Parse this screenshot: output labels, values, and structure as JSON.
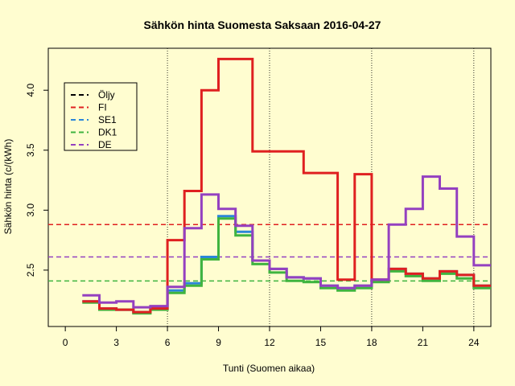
{
  "chart_data": {
    "type": "line",
    "step": true,
    "title": "Sähkön hinta Suomesta Saksaan 2016-04-27",
    "xlabel": "Tunti (Suomen aikaa)",
    "ylabel": "Sähkön hinta (c/(kWh)",
    "xlim": [
      -1,
      25
    ],
    "ylim": [
      2.03,
      4.35
    ],
    "x_ticks": [
      0,
      3,
      6,
      9,
      12,
      15,
      18,
      21,
      24
    ],
    "x_tick_labels": [
      "0",
      "3",
      "6",
      "9",
      "12",
      "15",
      "18",
      "21",
      "24"
    ],
    "y_ticks": [
      2.5,
      3.0,
      3.5,
      4.0
    ],
    "y_tick_labels": [
      "2.5",
      "3.0",
      "3.5",
      "4.0"
    ],
    "vlines": [
      6,
      12,
      18,
      24
    ],
    "legend_position": "top-left",
    "legend": [
      {
        "label": "Öljy",
        "color": "#000000"
      },
      {
        "label": "FI",
        "color": "#df2020"
      },
      {
        "label": "SE1",
        "color": "#2b86d9"
      },
      {
        "label": "DK1",
        "color": "#3fb43f"
      },
      {
        "label": "DE",
        "color": "#9440c0"
      }
    ],
    "hlines": [
      {
        "series": "FI",
        "value": 2.88,
        "color": "#df2020"
      },
      {
        "series": "DE",
        "value": 2.61,
        "color": "#9440c0"
      },
      {
        "series": "DK1",
        "value": 2.41,
        "color": "#3fb43f"
      }
    ],
    "x": [
      1,
      2,
      3,
      4,
      5,
      6,
      7,
      8,
      9,
      10,
      11,
      12,
      13,
      14,
      15,
      16,
      17,
      18,
      19,
      20,
      21,
      22,
      23,
      24,
      25
    ],
    "series": [
      {
        "name": "SE1",
        "color": "#2b86d9",
        "values": [
          2.24,
          2.18,
          2.17,
          2.15,
          2.18,
          2.33,
          2.39,
          2.61,
          2.95,
          2.82,
          2.58,
          2.51,
          2.44,
          2.43,
          2.37,
          2.35,
          2.37,
          2.42,
          2.51,
          2.47,
          2.43,
          2.49,
          2.46,
          2.37,
          2.37
        ]
      },
      {
        "name": "DK1",
        "color": "#3fb43f",
        "values": [
          2.23,
          2.17,
          2.17,
          2.14,
          2.17,
          2.31,
          2.37,
          2.59,
          2.93,
          2.79,
          2.55,
          2.48,
          2.41,
          2.4,
          2.35,
          2.33,
          2.35,
          2.4,
          2.49,
          2.45,
          2.41,
          2.47,
          2.43,
          2.35,
          2.35
        ]
      },
      {
        "name": "FI",
        "color": "#df2020",
        "values": [
          2.24,
          2.18,
          2.17,
          2.15,
          2.18,
          2.75,
          3.16,
          4.0,
          4.26,
          4.26,
          3.49,
          3.49,
          3.49,
          3.31,
          3.31,
          2.42,
          3.3,
          2.42,
          2.51,
          2.47,
          2.43,
          2.49,
          2.46,
          2.37,
          2.37
        ]
      },
      {
        "name": "DE",
        "color": "#9440c0",
        "values": [
          2.29,
          2.23,
          2.24,
          2.19,
          2.2,
          2.36,
          2.85,
          3.13,
          3.01,
          2.87,
          2.58,
          2.51,
          2.44,
          2.43,
          2.37,
          2.35,
          2.37,
          2.42,
          2.88,
          3.01,
          3.28,
          3.18,
          2.78,
          2.54,
          2.54
        ]
      }
    ]
  }
}
